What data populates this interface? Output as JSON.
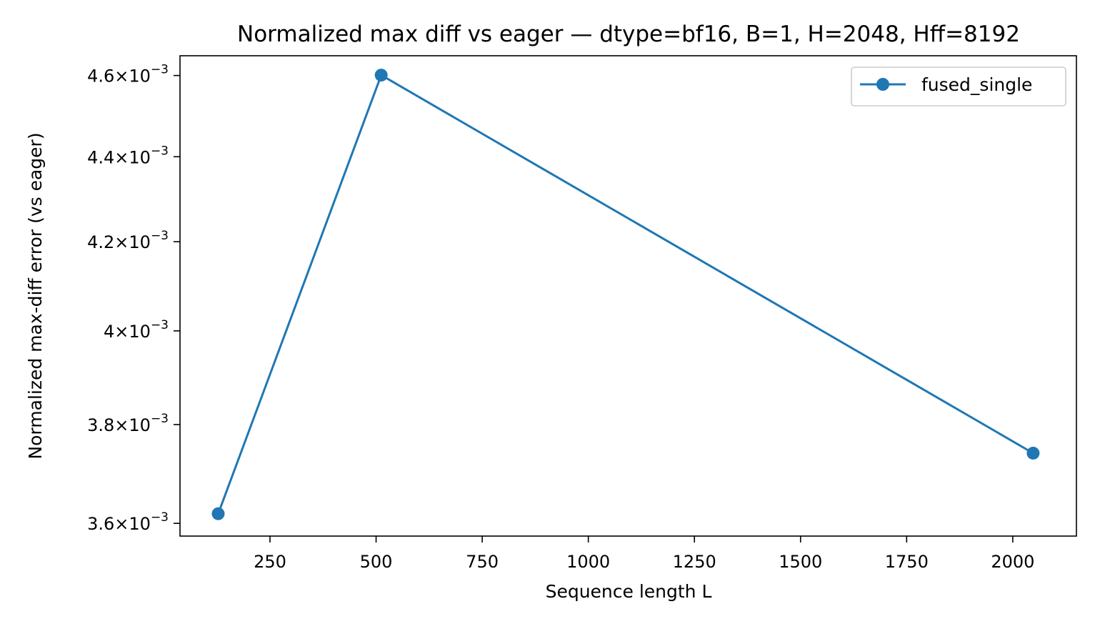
{
  "chart_data": {
    "type": "line",
    "title": "Normalized max diff vs eager — dtype=bf16, B=1, H=2048, Hff=8192",
    "xlabel": "Sequence length L",
    "ylabel": "Normalized max-diff error (vs eager)",
    "xlim": [
      38,
      2150
    ],
    "ylim": [
      0.003575,
      0.00465
    ],
    "y_scale": "log",
    "x_ticks": [
      250,
      500,
      750,
      1000,
      1250,
      1500,
      1750,
      2000
    ],
    "x_tick_labels": [
      "250",
      "500",
      "750",
      "1000",
      "1250",
      "1500",
      "1750",
      "2000"
    ],
    "y_ticks": [
      0.0036,
      0.0038,
      0.004,
      0.0042,
      0.0044,
      0.0046
    ],
    "y_tick_labels": [
      {
        "mantissa": "3.6",
        "exponent": "−3"
      },
      {
        "mantissa": "3.8",
        "exponent": "−3"
      },
      {
        "mantissa": "4",
        "exponent": "−3"
      },
      {
        "mantissa": "4.2",
        "exponent": "−3"
      },
      {
        "mantissa": "4.4",
        "exponent": "−3"
      },
      {
        "mantissa": "4.6",
        "exponent": "−3"
      }
    ],
    "grid": false,
    "legend_position": "top-right",
    "series": [
      {
        "name": "fused_single",
        "color": "#1f77b4",
        "marker": "circle",
        "x": [
          128,
          512,
          2048
        ],
        "y": [
          0.003619,
          0.004601,
          0.003741
        ]
      }
    ]
  }
}
